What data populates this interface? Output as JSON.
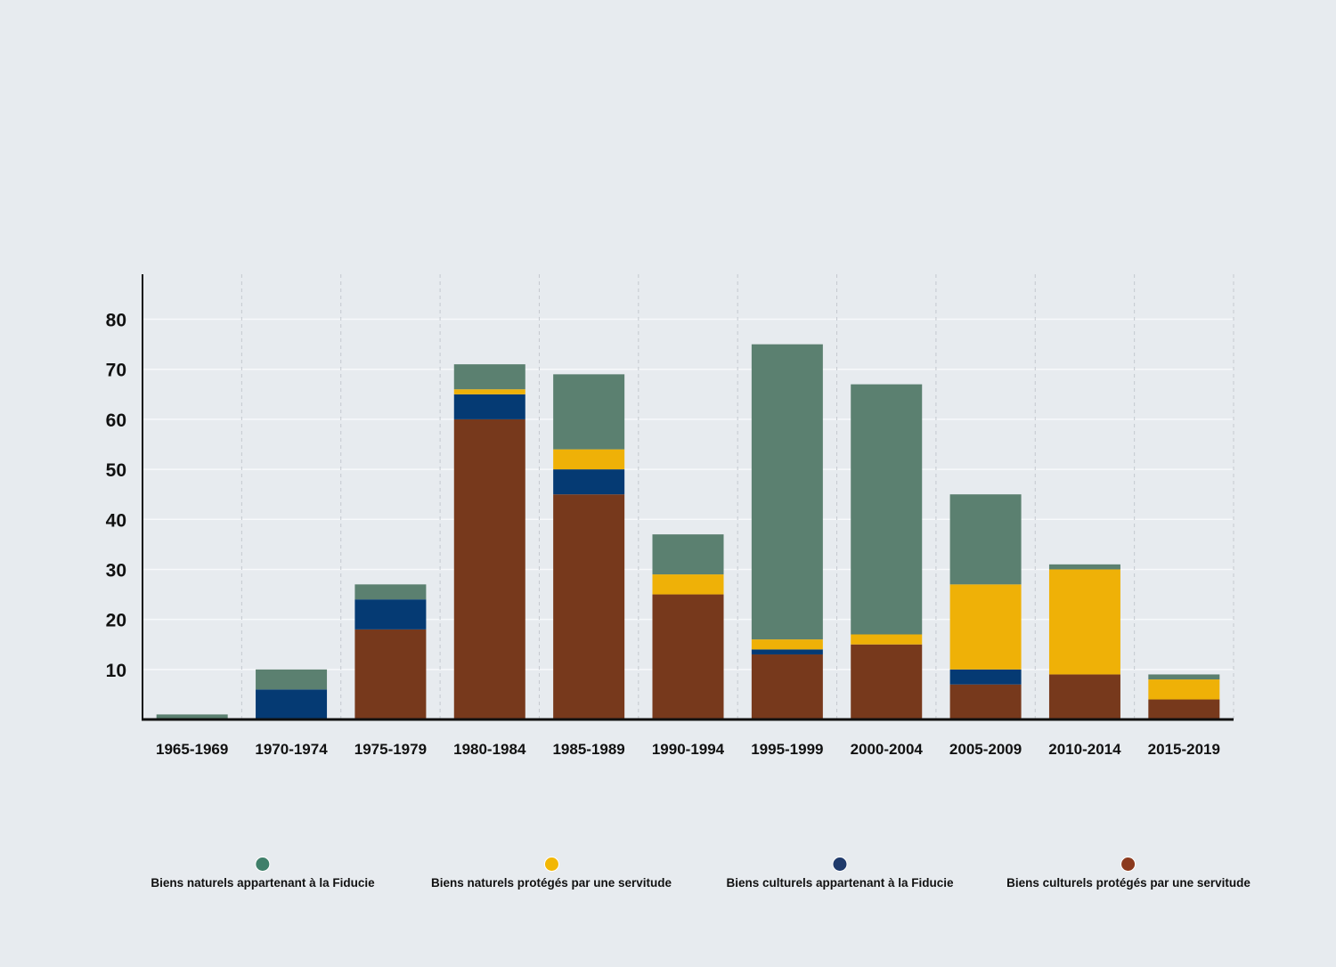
{
  "chart_data": {
    "type": "bar",
    "stacked": true,
    "categories": [
      "1965-1969",
      "1970-1974",
      "1975-1979",
      "1980-1984",
      "1985-1989",
      "1990-1994",
      "1995-1999",
      "2000-2004",
      "2005-2009",
      "2010-2014",
      "2015-2019"
    ],
    "series": [
      {
        "name": "Biens culturels protégés par une servitude",
        "color": "#77391c",
        "legend_color": "#8b3a1e",
        "values": [
          0,
          0,
          18,
          60,
          45,
          25,
          13,
          15,
          7,
          9,
          4
        ]
      },
      {
        "name": "Biens culturels appartenant à la Fiducie",
        "color": "#053a73",
        "legend_color": "#1f3a6b",
        "values": [
          0,
          6,
          6,
          5,
          5,
          0,
          1,
          0,
          3,
          0,
          0
        ]
      },
      {
        "name": "Biens naturels protégés par une servitude",
        "color": "#efb107",
        "legend_color": "#f2b705",
        "values": [
          0,
          0,
          0,
          1,
          4,
          4,
          2,
          2,
          17,
          21,
          4
        ]
      },
      {
        "name": "Biens naturels appartenant à la Fiducie",
        "color": "#5b8070",
        "legend_color": "#3f7f6a",
        "values": [
          1,
          4,
          3,
          5,
          15,
          8,
          59,
          50,
          18,
          1,
          1
        ]
      }
    ],
    "legend_order": [
      3,
      2,
      1,
      0
    ],
    "yticks": [
      "10",
      "20",
      "30",
      "40",
      "50",
      "60",
      "70",
      "80"
    ],
    "ylim": [
      0,
      89
    ],
    "grid": true,
    "legend_position": "bottom",
    "title": "",
    "xlabel": "",
    "ylabel": ""
  }
}
